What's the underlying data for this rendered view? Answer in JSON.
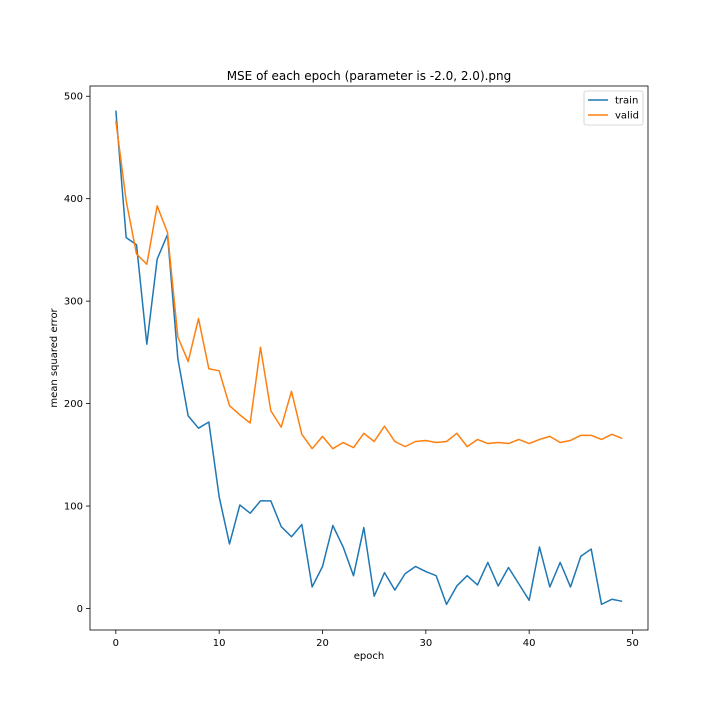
{
  "chart_data": {
    "type": "line",
    "title": "MSE of each epoch (parameter is -2.0, 2.0).png",
    "xlabel": "epoch",
    "ylabel": "mean squared error",
    "xlim": [
      -2.5,
      51.5
    ],
    "ylim": [
      -21,
      510
    ],
    "xticks": [
      0,
      10,
      20,
      30,
      40,
      50
    ],
    "yticks": [
      0,
      100,
      200,
      300,
      400,
      500
    ],
    "grid": false,
    "legend_position": "upper right",
    "x": [
      0,
      1,
      2,
      3,
      4,
      5,
      6,
      7,
      8,
      9,
      10,
      11,
      12,
      13,
      14,
      15,
      16,
      17,
      18,
      19,
      20,
      21,
      22,
      23,
      24,
      25,
      26,
      27,
      28,
      29,
      30,
      31,
      32,
      33,
      34,
      35,
      36,
      37,
      38,
      39,
      40,
      41,
      42,
      43,
      44,
      45,
      46,
      47,
      48,
      49
    ],
    "series": [
      {
        "name": "train",
        "color": "#1f77b4",
        "values": [
          486,
          362,
          355,
          258,
          341,
          365,
          244,
          188,
          176,
          182,
          109,
          63,
          101,
          93,
          105,
          105,
          80,
          70,
          82,
          21,
          41,
          81,
          60,
          32,
          79,
          12,
          35,
          18,
          34,
          41,
          36,
          32,
          4,
          22,
          32,
          23,
          45,
          22,
          40,
          24,
          8,
          60,
          21,
          45,
          21,
          51,
          58,
          4,
          9,
          7
        ]
      },
      {
        "name": "valid",
        "color": "#ff7f0e",
        "values": [
          476,
          398,
          346,
          336,
          393,
          367,
          265,
          241,
          283,
          234,
          232,
          198,
          189,
          181,
          255,
          193,
          177,
          212,
          170,
          156,
          168,
          156,
          162,
          157,
          171,
          163,
          178,
          163,
          158,
          163,
          164,
          162,
          163,
          171,
          158,
          165,
          161,
          162,
          161,
          165,
          161,
          165,
          168,
          162,
          164,
          169,
          169,
          165,
          170,
          166
        ]
      }
    ]
  }
}
